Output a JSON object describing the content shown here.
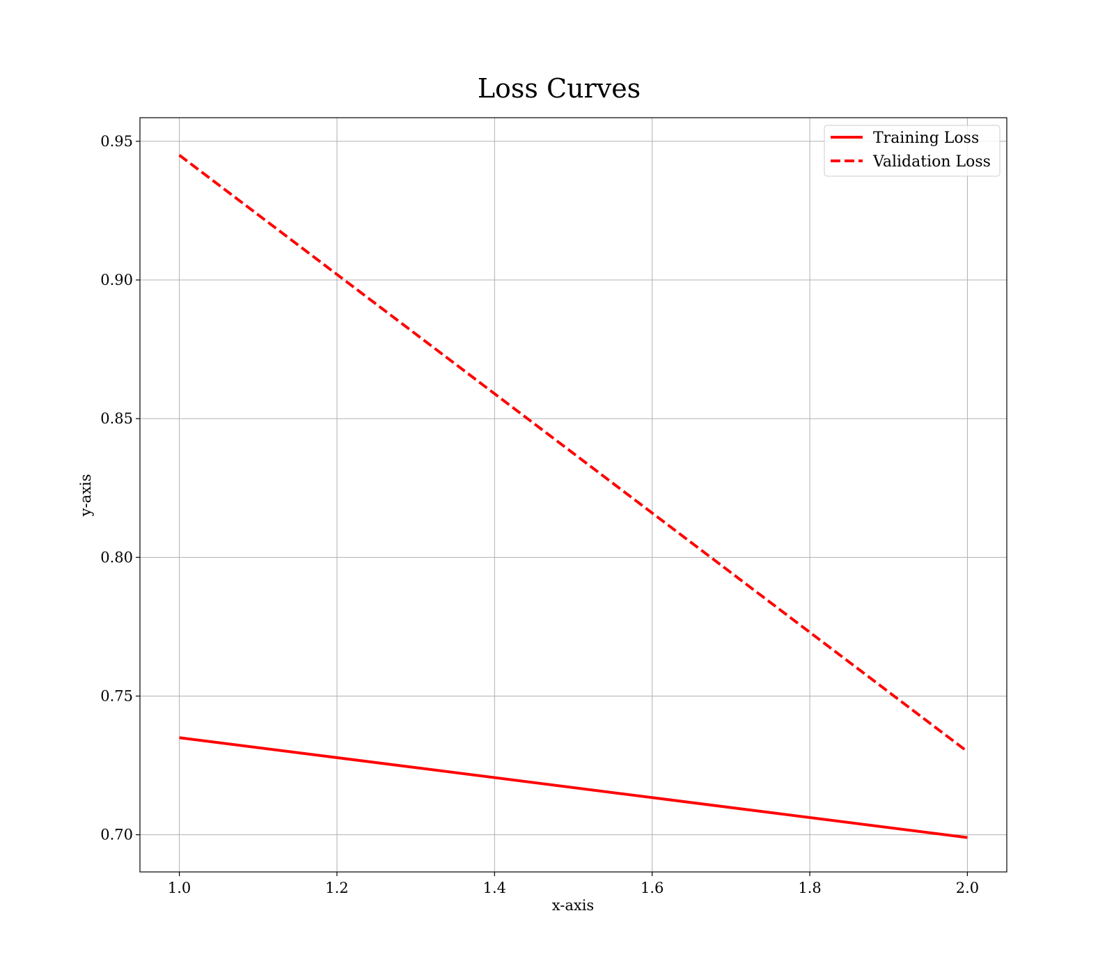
{
  "chart_data": {
    "type": "line",
    "title": "Loss Curves",
    "xlabel": "x-axis",
    "ylabel": "y-axis",
    "xlim": [
      0.95,
      2.05
    ],
    "ylim": [
      0.6866,
      0.9585
    ],
    "x_ticks": [
      "1.0",
      "1.2",
      "1.4",
      "1.6",
      "1.8",
      "2.0"
    ],
    "y_ticks": [
      "0.70",
      "0.75",
      "0.80",
      "0.85",
      "0.90",
      "0.95"
    ],
    "grid": true,
    "legend_position": "top-right",
    "series": [
      {
        "name": "Training Loss",
        "x": [
          1.0,
          2.0
        ],
        "values": [
          0.735,
          0.699
        ],
        "color": "#ff0000",
        "style": "solid"
      },
      {
        "name": "Validation Loss",
        "x": [
          1.0,
          2.0
        ],
        "values": [
          0.945,
          0.73
        ],
        "color": "#ff0000",
        "style": "dashed"
      }
    ]
  }
}
